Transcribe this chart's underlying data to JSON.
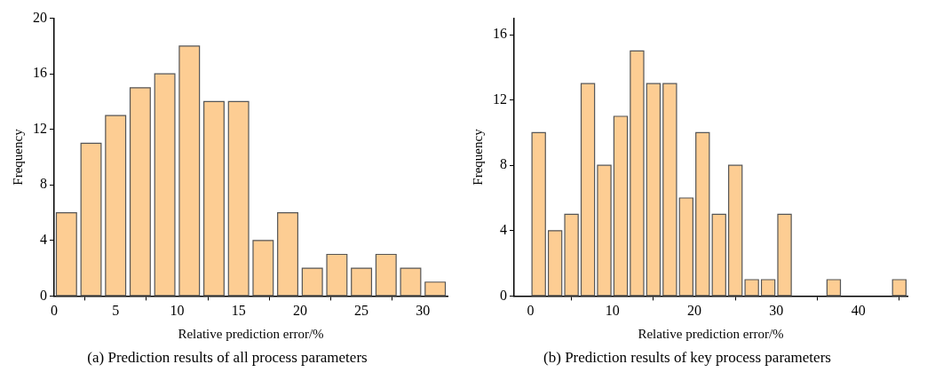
{
  "chart_data": [
    {
      "type": "histogram",
      "title": "(a) Prediction results of all process parameters",
      "xlabel": "Relative prediction error/%",
      "ylabel": "Frequency",
      "bins": [
        0,
        2,
        4,
        6,
        8,
        10,
        12,
        14,
        16,
        18,
        20,
        22,
        24,
        26,
        28,
        30,
        32
      ],
      "values": [
        6,
        11,
        13,
        15,
        16,
        18,
        14,
        14,
        4,
        6,
        2,
        3,
        2,
        3,
        2,
        1
      ],
      "color": "#fdcd93",
      "xlim": [
        0,
        32
      ],
      "xticks": [
        0,
        5,
        10,
        15,
        20,
        25,
        30
      ],
      "ylim": [
        0,
        20
      ],
      "yticks": [
        0,
        4,
        8,
        12,
        16,
        20
      ],
      "grid": false,
      "legend": false
    },
    {
      "type": "histogram",
      "title": "(b) Prediction results of key process parameters",
      "xlabel": "Relative prediction error/%",
      "ylabel": "Frequency",
      "bins": [
        0,
        2,
        4,
        6,
        8,
        10,
        12,
        14,
        16,
        18,
        20,
        22,
        24,
        26,
        28,
        30,
        32,
        34,
        36,
        38,
        40,
        42,
        44,
        46
      ],
      "values": [
        10,
        4,
        5,
        13,
        8,
        11,
        15,
        13,
        13,
        6,
        10,
        5,
        8,
        1,
        1,
        5,
        0,
        0,
        1,
        0,
        0,
        0,
        1
      ],
      "color": "#fdcd93",
      "xlim": [
        -2,
        46
      ],
      "xticks": [
        0,
        10,
        20,
        30,
        40
      ],
      "ylim": [
        0,
        17
      ],
      "yticks": [
        0,
        4,
        8,
        12,
        16
      ],
      "grid": false,
      "legend": false
    }
  ]
}
